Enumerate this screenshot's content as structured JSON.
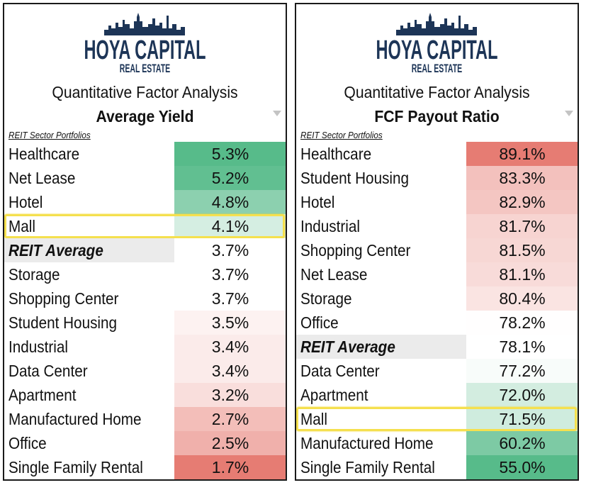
{
  "panels": [
    {
      "logo_name": "HOYA CAPITAL",
      "logo_sub": "REAL ESTATE",
      "heading": "Quantitative Factor Analysis",
      "metric": "Average Yield",
      "subheading": "REIT Sector Portfolios",
      "highlight": "Mall",
      "rows": [
        {
          "label": "Healthcare",
          "value": "5.3%"
        },
        {
          "label": "Net Lease",
          "value": "5.2%"
        },
        {
          "label": "Hotel",
          "value": "4.8%"
        },
        {
          "label": "Mall",
          "value": "4.1%"
        },
        {
          "label": "REIT Average",
          "value": "3.7%"
        },
        {
          "label": "Storage",
          "value": "3.7%"
        },
        {
          "label": "Shopping Center",
          "value": "3.7%"
        },
        {
          "label": "Student Housing",
          "value": "3.5%"
        },
        {
          "label": "Industrial",
          "value": "3.4%"
        },
        {
          "label": "Data Center",
          "value": "3.4%"
        },
        {
          "label": "Apartment",
          "value": "3.2%"
        },
        {
          "label": "Manufactured Home",
          "value": "2.7%"
        },
        {
          "label": "Office",
          "value": "2.5%"
        },
        {
          "label": "Single Family Rental",
          "value": "1.7%"
        }
      ]
    },
    {
      "logo_name": "HOYA CAPITAL",
      "logo_sub": "REAL ESTATE",
      "heading": "Quantitative Factor Analysis",
      "metric": "FCF Payout Ratio",
      "subheading": "REIT Sector Portfolios",
      "highlight": "Mall",
      "rows": [
        {
          "label": "Healthcare",
          "value": "89.1%"
        },
        {
          "label": "Student Housing",
          "value": "83.3%"
        },
        {
          "label": "Hotel",
          "value": "82.9%"
        },
        {
          "label": "Industrial",
          "value": "81.7%"
        },
        {
          "label": "Shopping Center",
          "value": "81.5%"
        },
        {
          "label": "Net Lease",
          "value": "81.1%"
        },
        {
          "label": "Storage",
          "value": "80.4%"
        },
        {
          "label": "Office",
          "value": "78.2%"
        },
        {
          "label": "REIT Average",
          "value": "78.1%"
        },
        {
          "label": "Data Center",
          "value": "77.2%"
        },
        {
          "label": "Apartment",
          "value": "72.0%"
        },
        {
          "label": "Mall",
          "value": "71.5%"
        },
        {
          "label": "Manufactured Home",
          "value": "60.2%"
        },
        {
          "label": "Single Family Rental",
          "value": "55.0%"
        }
      ]
    }
  ],
  "chart_data": [
    {
      "type": "table",
      "title": "Quantitative Factor Analysis",
      "metric": "Average Yield",
      "categories": [
        "Healthcare",
        "Net Lease",
        "Hotel",
        "Mall",
        "REIT Average",
        "Storage",
        "Shopping Center",
        "Student Housing",
        "Industrial",
        "Data Center",
        "Apartment",
        "Manufactured Home",
        "Office",
        "Single Family Rental"
      ],
      "values": [
        5.3,
        5.2,
        4.8,
        4.1,
        3.7,
        3.7,
        3.7,
        3.5,
        3.4,
        3.4,
        3.2,
        2.7,
        2.5,
        1.7
      ],
      "unit": "%"
    },
    {
      "type": "table",
      "title": "Quantitative Factor Analysis",
      "metric": "FCF Payout Ratio",
      "categories": [
        "Healthcare",
        "Student Housing",
        "Hotel",
        "Industrial",
        "Shopping Center",
        "Net Lease",
        "Storage",
        "Office",
        "REIT Average",
        "Data Center",
        "Apartment",
        "Mall",
        "Manufactured Home",
        "Single Family Rental"
      ],
      "values": [
        89.1,
        83.3,
        82.9,
        81.7,
        81.5,
        81.1,
        80.4,
        78.2,
        78.1,
        77.2,
        72.0,
        71.5,
        60.2,
        55.0
      ],
      "unit": "%"
    }
  ],
  "colors": {
    "good": "#57bb8a",
    "neutral": "#ffffff",
    "bad": "#e67c73",
    "highlight": "#f5e04e",
    "logo": "#1d3557"
  },
  "color_direction": [
    "higher-is-better",
    "lower-is-better"
  ]
}
